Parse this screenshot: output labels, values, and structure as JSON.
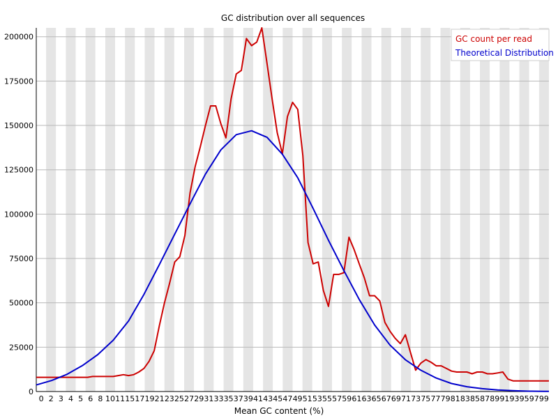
{
  "chart_data": {
    "type": "line",
    "title": "GC distribution over all sequences",
    "xlabel": "Mean GC content (%)",
    "ylabel": "",
    "xlim": [
      0,
      100
    ],
    "ylim": [
      0,
      205000
    ],
    "grid": "horizontal lines, alternating vertical bands",
    "legend_position": "top-right",
    "x_tick_labels": [
      "0",
      "2",
      "3",
      "4",
      "5",
      "6",
      "8",
      "10",
      "11",
      "15",
      "17",
      "19",
      "21",
      "23",
      "25",
      "27",
      "29",
      "31",
      "33",
      "35",
      "37",
      "39",
      "41",
      "43",
      "45",
      "47",
      "49",
      "51",
      "53",
      "55",
      "57",
      "59",
      "61",
      "63",
      "65",
      "67",
      "69",
      "71",
      "73",
      "75",
      "77",
      "79",
      "81",
      "83",
      "85",
      "87",
      "89",
      "91",
      "93",
      "95",
      "97",
      "99"
    ],
    "y_ticks": [
      {
        "value": 0,
        "label": "0"
      },
      {
        "value": 25000,
        "label": "25000"
      },
      {
        "value": 50000,
        "label": "50000"
      },
      {
        "value": 75000,
        "label": "75000"
      },
      {
        "value": 100000,
        "label": "100000"
      },
      {
        "value": 125000,
        "label": "125000"
      },
      {
        "value": 150000,
        "label": "150000"
      },
      {
        "value": 175000,
        "label": "175000"
      },
      {
        "value": 200000,
        "label": "200000"
      }
    ],
    "series": [
      {
        "name": "GC count per read",
        "color": "#cc0000",
        "x": [
          0,
          2,
          4,
          6,
          8,
          10,
          11,
          12,
          13,
          14,
          15,
          16,
          17,
          18,
          19,
          20,
          21,
          22,
          23,
          24,
          25,
          26,
          27,
          28,
          29,
          30,
          31,
          32,
          33,
          34,
          35,
          36,
          37,
          38,
          39,
          40,
          41,
          42,
          43,
          44,
          45,
          46,
          47,
          48,
          49,
          50,
          51,
          52,
          53,
          54,
          55,
          56,
          57,
          58,
          59,
          60,
          61,
          62,
          63,
          64,
          65,
          66,
          67,
          68,
          69,
          70,
          71,
          72,
          73,
          74,
          75,
          76,
          77,
          78,
          79,
          80,
          81,
          82,
          83,
          84,
          85,
          86,
          87,
          88,
          89,
          90,
          91,
          92,
          93,
          94,
          95,
          96,
          97,
          98,
          99,
          100
        ],
        "y": [
          8000,
          8000,
          8000,
          8000,
          8000,
          8000,
          8500,
          8500,
          8500,
          8500,
          8500,
          9000,
          9500,
          9000,
          9500,
          11000,
          13000,
          17000,
          23000,
          37000,
          50000,
          61000,
          73000,
          76000,
          88000,
          112000,
          127000,
          138000,
          150000,
          161000,
          161000,
          151000,
          143000,
          165000,
          179000,
          181000,
          199000,
          195000,
          197000,
          205000,
          185000,
          165000,
          146000,
          134000,
          155000,
          163000,
          159000,
          133000,
          84000,
          72000,
          73000,
          57000,
          48000,
          66000,
          66000,
          67000,
          87000,
          80000,
          72000,
          64000,
          54000,
          54000,
          51000,
          39000,
          34000,
          30000,
          27000,
          32000,
          22000,
          12000,
          16000,
          18000,
          16500,
          14500,
          14500,
          13000,
          11500,
          11000,
          11000,
          11000,
          10000,
          11000,
          11000,
          10000,
          10000,
          10500,
          11000,
          7000,
          6000,
          6000,
          6000,
          6000,
          6000,
          6000,
          6000,
          6000
        ]
      },
      {
        "name": "Theoretical Distribution",
        "color": "#0000cc",
        "x": [
          0,
          3,
          6,
          9,
          12,
          15,
          18,
          21,
          24,
          27,
          30,
          33,
          36,
          39,
          42,
          45,
          48,
          51,
          54,
          57,
          60,
          63,
          66,
          69,
          72,
          75,
          78,
          81,
          84,
          87,
          90,
          93,
          96,
          99,
          100
        ],
        "y": [
          3700,
          6200,
          9700,
          14600,
          20800,
          28900,
          39800,
          54700,
          71500,
          88700,
          105800,
          122600,
          136200,
          144800,
          147000,
          143300,
          133800,
          120500,
          103200,
          85300,
          68200,
          51900,
          37500,
          26200,
          17900,
          12000,
          7600,
          4500,
          2700,
          1600,
          900,
          500,
          200,
          100,
          100
        ]
      }
    ]
  }
}
